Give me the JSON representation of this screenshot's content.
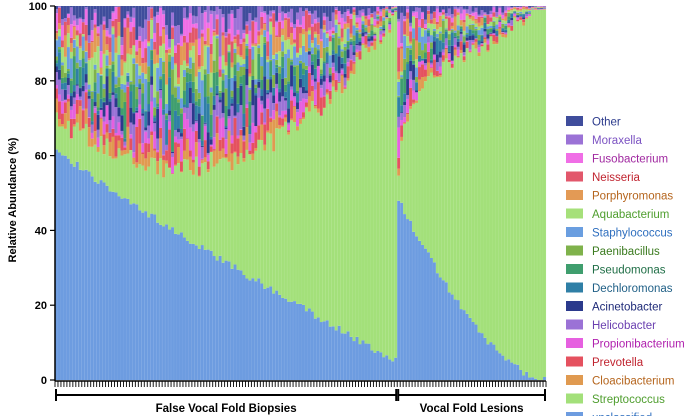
{
  "chart_data": {
    "type": "bar",
    "stacked": true,
    "ylabel": "Relative Abundance (%)",
    "ylim": [
      0,
      100
    ],
    "yticks": [
      0,
      20,
      40,
      60,
      80,
      100
    ],
    "groups": [
      {
        "label": "False Vocal Fold Biopsies",
        "sample_count": 115
      },
      {
        "label": "Vocal Fold Lesions",
        "sample_count": 50
      }
    ],
    "legend": [
      {
        "name": "Other",
        "color": "#3f4d9c"
      },
      {
        "name": "Moraxella",
        "color": "#9b72d6"
      },
      {
        "name": "Fusobacterium",
        "color": "#f06ee6"
      },
      {
        "name": "Neisseria",
        "color": "#e2576b"
      },
      {
        "name": "Porphyromonas",
        "color": "#e39a55"
      },
      {
        "name": "Aquabacterium",
        "color": "#a6e07a"
      },
      {
        "name": "Staphylococcus",
        "color": "#6a9ee0"
      },
      {
        "name": "Paenibacillus",
        "color": "#7fb24b"
      },
      {
        "name": "Pseudomonas",
        "color": "#3f9e6e"
      },
      {
        "name": "Dechloromonas",
        "color": "#2f7fa6"
      },
      {
        "name": "Acinetobacter",
        "color": "#2b3a8c"
      },
      {
        "name": "Helicobacter",
        "color": "#9b72d6"
      },
      {
        "name": "Propionibacterium",
        "color": "#e660e0"
      },
      {
        "name": "Prevotella",
        "color": "#e5515f"
      },
      {
        "name": "Cloacibacterium",
        "color": "#e09a50"
      },
      {
        "name": "Streptococcus",
        "color": "#a3e07a"
      },
      {
        "name": "unclassified",
        "color": "#6d9ce0"
      }
    ],
    "legend_text_colors": [
      "#2b3a8c",
      "#7b52c2",
      "#a028a0",
      "#c0232f",
      "#b5651d",
      "#4f9e2e",
      "#2f6fbf",
      "#3a7a1e",
      "#1f6e46",
      "#1f5f86",
      "#1e2a78",
      "#6a3fb0",
      "#b01fae",
      "#c0232f",
      "#b5651d",
      "#4f9e2e",
      "#2f6fbf"
    ],
    "series_order_bottom_to_top": [
      "unclassified",
      "Streptococcus",
      "Cloacibacterium",
      "Prevotella",
      "Propionibacterium",
      "Helicobacter",
      "Acinetobacter",
      "Dechloromonas",
      "Pseudomonas",
      "Paenibacillus",
      "Staphylococcus",
      "Aquabacterium",
      "Porphyromonas",
      "Neisseria",
      "Fusobacterium",
      "Moraxella",
      "Other"
    ],
    "profile": {
      "fvfb_unclassified_start": 62,
      "fvfb_unclassified_end": 5,
      "fvfb_streptococcus_start": 6,
      "fvfb_streptococcus_end": 90,
      "vfl_unclassified_start": 48,
      "vfl_unclassified_end": 0,
      "vfl_streptococcus_start": 5,
      "vfl_streptococcus_end": 100
    }
  }
}
